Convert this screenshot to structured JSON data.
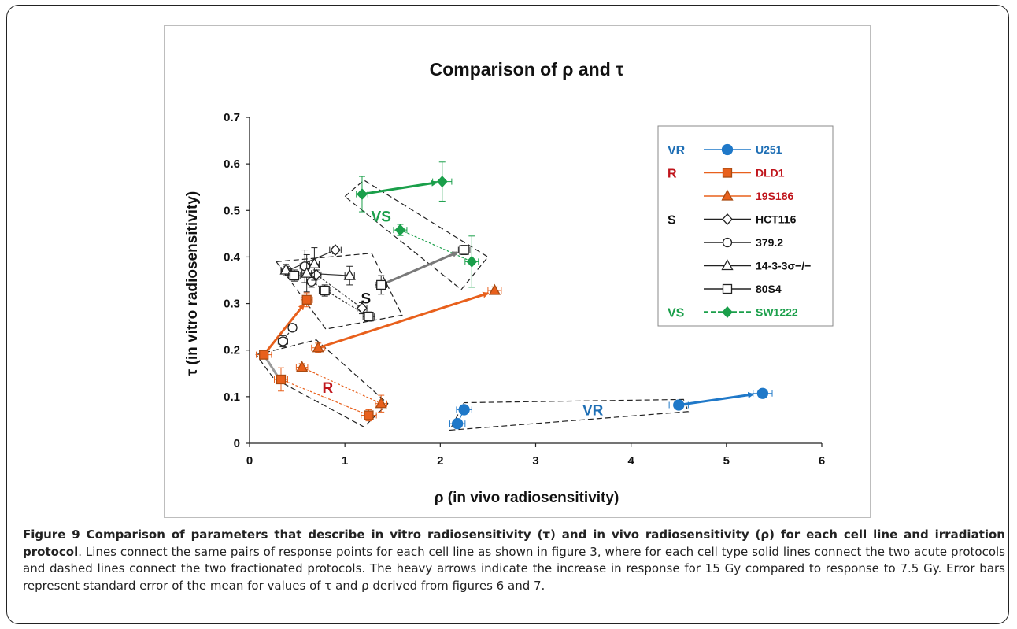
{
  "caption": {
    "lead": "Figure 9 Comparison of parameters that describe in vitro radiosensitivity (τ) and in vivo radiosensitivity (ρ) for each cell line and irradiation protocol",
    "body": ". Lines connect the same pairs of response points for each cell line as shown in figure 3, where for each cell type solid lines connect the two acute protocols and dashed lines connect the two fractionated protocols. The heavy arrows indicate the increase in response for 15 Gy compared to response to 7.5 Gy. Error bars represent standard error of the mean for values of τ and ρ derived from figures 6 and 7."
  },
  "chart_data": {
    "type": "scatter",
    "title": "Comparison of ρ and τ",
    "xlabel": "ρ (in vivo radiosensitivity)",
    "ylabel": "τ (in vitro radiosensitivity)",
    "xlim": [
      0,
      6
    ],
    "ylim": [
      0,
      0.7
    ],
    "xticks": [
      "0",
      "1",
      "2",
      "3",
      "4",
      "5",
      "6"
    ],
    "yticks": [
      "0",
      "0.1",
      "0.2",
      "0.3",
      "0.4",
      "0.5",
      "0.6",
      "0.7"
    ],
    "grid": false,
    "legend_position": "right",
    "legend_groups": [
      {
        "label": "VR",
        "color": "#1f6fb5"
      },
      {
        "label": "R",
        "color": "#c0151c"
      },
      {
        "label": "S",
        "color": "#111111"
      },
      {
        "label": "VS",
        "color": "#1a9f4a"
      }
    ],
    "series": [
      {
        "name": "U251",
        "group": "VR",
        "color": "#1f78c8",
        "text_color": "#1f6fb5",
        "marker": "filled-circle",
        "line": "solid",
        "points": [
          [
            2.18,
            0.042,
            0.08,
            0.006
          ],
          [
            2.25,
            0.072,
            0.08,
            0.006
          ],
          [
            4.5,
            0.082,
            0.1,
            0.006
          ],
          [
            5.38,
            0.107,
            0.1,
            0.006
          ]
        ]
      },
      {
        "name": "DLD1",
        "group": "R",
        "color": "#e8601c",
        "text_color": "#c0151c",
        "marker": "filled-square",
        "line": "solid",
        "points": [
          [
            0.15,
            0.19,
            0.08,
            0.008
          ],
          [
            0.6,
            0.308,
            0.06,
            0.015
          ],
          [
            0.33,
            0.137,
            0.07,
            0.025
          ],
          [
            1.25,
            0.06,
            0.08,
            0.012
          ]
        ]
      },
      {
        "name": "19S186",
        "group": "R",
        "color": "#e8601c",
        "text_color": "#c0151c",
        "marker": "filled-triangle",
        "line": "solid",
        "points": [
          [
            0.72,
            0.205,
            0.07,
            0.01
          ],
          [
            2.57,
            0.328,
            0.07,
            0.008
          ],
          [
            0.55,
            0.163,
            0.06,
            0.008
          ],
          [
            1.38,
            0.085,
            0.06,
            0.018
          ]
        ]
      },
      {
        "name": "HCT116",
        "group": "S",
        "color": "#111111",
        "text_color": "#111111",
        "marker": "open-diamond",
        "line": "solid",
        "points": [
          [
            0.39,
            0.37,
            0.05,
            0.01
          ],
          [
            0.9,
            0.415,
            0.06,
            0.008
          ],
          [
            0.7,
            0.362,
            0.05,
            0.01
          ],
          [
            1.18,
            0.29,
            0.05,
            0.012
          ]
        ]
      },
      {
        "name": "379.2",
        "group": "S",
        "color": "#111111",
        "text_color": "#111111",
        "marker": "open-circle",
        "line": "solid",
        "points": [
          [
            0.35,
            0.219,
            0.05,
            0.012
          ],
          [
            0.45,
            0.248,
            0.04,
            0.008
          ],
          [
            0.65,
            0.347,
            0.05,
            0.012
          ],
          [
            0.58,
            0.38,
            0.05,
            0.035
          ]
        ]
      },
      {
        "name": "14-3-3σ−/−",
        "group": "S",
        "color": "#111111",
        "text_color": "#111111",
        "marker": "open-triangle",
        "line": "solid",
        "points": [
          [
            0.38,
            0.372,
            0.05,
            0.012
          ],
          [
            0.68,
            0.385,
            0.05,
            0.035
          ],
          [
            0.6,
            0.365,
            0.05,
            0.04
          ],
          [
            1.05,
            0.36,
            0.05,
            0.02
          ]
        ]
      },
      {
        "name": "80S4",
        "group": "S",
        "color": "#111111",
        "text_color": "#111111",
        "marker": "open-square",
        "line": "solid",
        "points": [
          [
            0.47,
            0.36,
            0.06,
            0.012
          ],
          [
            0.79,
            0.328,
            0.06,
            0.012
          ],
          [
            1.25,
            0.272,
            0.06,
            0.01
          ],
          [
            1.38,
            0.34,
            0.06,
            0.02
          ],
          [
            2.25,
            0.415,
            0.06,
            0.01
          ]
        ]
      },
      {
        "name": "SW1222",
        "group": "VS",
        "color": "#1a9f4a",
        "text_color": "#1a9f4a",
        "marker": "filled-diamond",
        "line": "dashed",
        "points": [
          [
            1.18,
            0.535,
            0.06,
            0.038
          ],
          [
            2.02,
            0.562,
            0.1,
            0.042
          ],
          [
            1.58,
            0.458,
            0.07,
            0.012
          ],
          [
            2.33,
            0.39,
            0.07,
            0.055
          ]
        ]
      }
    ],
    "connectors": [
      {
        "color": "#1f78c8",
        "dash": false,
        "from": [
          2.18,
          0.042
        ],
        "to": [
          2.25,
          0.072
        ]
      },
      {
        "color": "#e8601c",
        "dash": true,
        "from": [
          0.33,
          0.137
        ],
        "to": [
          1.25,
          0.06
        ]
      },
      {
        "color": "#e8601c",
        "dash": true,
        "from": [
          0.55,
          0.163
        ],
        "to": [
          1.38,
          0.085
        ]
      },
      {
        "color": "#333333",
        "dash": false,
        "from": [
          0.39,
          0.37
        ],
        "to": [
          0.9,
          0.415
        ]
      },
      {
        "color": "#333333",
        "dash": true,
        "from": [
          0.7,
          0.362
        ],
        "to": [
          1.18,
          0.29
        ]
      },
      {
        "color": "#333333",
        "dash": true,
        "from": [
          0.35,
          0.219
        ],
        "to": [
          0.45,
          0.248
        ]
      },
      {
        "color": "#333333",
        "dash": true,
        "from": [
          0.65,
          0.347
        ],
        "to": [
          1.25,
          0.272
        ]
      },
      {
        "color": "#333333",
        "dash": false,
        "from": [
          0.6,
          0.365
        ],
        "to": [
          1.05,
          0.36
        ]
      },
      {
        "color": "#1a9f4a",
        "dash": true,
        "from": [
          1.58,
          0.458
        ],
        "to": [
          2.33,
          0.39
        ]
      }
    ],
    "arrows": [
      {
        "color": "#1f78c8",
        "from": [
          4.5,
          0.082
        ],
        "to": [
          5.28,
          0.105
        ]
      },
      {
        "color": "#e8601c",
        "from": [
          0.15,
          0.19
        ],
        "to": [
          0.57,
          0.298
        ]
      },
      {
        "color": "#e8601c",
        "from": [
          0.72,
          0.205
        ],
        "to": [
          2.5,
          0.322
        ]
      },
      {
        "color": "#1a9f4a",
        "from": [
          1.18,
          0.535
        ],
        "to": [
          1.96,
          0.56
        ]
      },
      {
        "color": "#7a7a7a",
        "from": [
          1.38,
          0.34
        ],
        "to": [
          2.18,
          0.41
        ]
      },
      {
        "color": "#9a9a9a",
        "from": [
          0.15,
          0.19
        ],
        "to": [
          0.3,
          0.142
        ],
        "head": false
      }
    ],
    "group_regions": [
      {
        "label": "VR",
        "color": "#1f6fb5",
        "label_at": [
          3.6,
          0.06
        ],
        "outline": [
          [
            2.1,
            0.028
          ],
          [
            4.6,
            0.068
          ],
          [
            4.55,
            0.094
          ],
          [
            2.25,
            0.087
          ]
        ]
      },
      {
        "label": "R",
        "color": "#c0151c",
        "label_at": [
          0.82,
          0.108
        ],
        "outline": [
          [
            0.07,
            0.19
          ],
          [
            0.7,
            0.222
          ],
          [
            1.45,
            0.085
          ],
          [
            1.2,
            0.035
          ],
          [
            0.25,
            0.14
          ]
        ]
      },
      {
        "label": "S",
        "color": "#111111",
        "label_at": [
          1.22,
          0.3
        ],
        "outline": [
          [
            0.28,
            0.39
          ],
          [
            1.28,
            0.408
          ],
          [
            1.6,
            0.275
          ],
          [
            0.8,
            0.245
          ]
        ]
      },
      {
        "label": "VS",
        "color": "#1a9f4a",
        "label_at": [
          1.38,
          0.476
        ],
        "outline": [
          [
            1.0,
            0.53
          ],
          [
            1.2,
            0.565
          ],
          [
            2.5,
            0.4
          ],
          [
            2.22,
            0.33
          ]
        ]
      }
    ]
  }
}
